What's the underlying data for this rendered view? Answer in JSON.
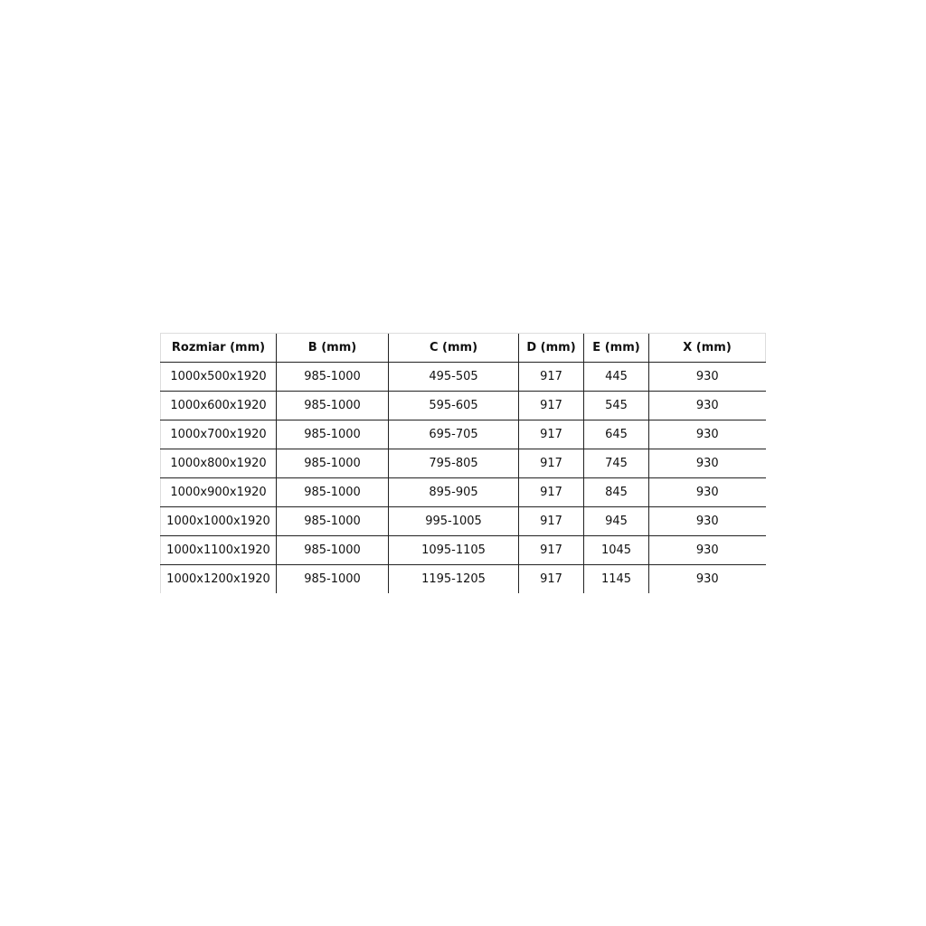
{
  "table": {
    "headers": [
      "Rozmiar (mm)",
      "B (mm)",
      "C (mm)",
      "D (mm)",
      "E (mm)",
      "X (mm)"
    ],
    "rows": [
      [
        "1000x500x1920",
        "985-1000",
        "495-505",
        "917",
        "445",
        "930"
      ],
      [
        "1000x600x1920",
        "985-1000",
        "595-605",
        "917",
        "545",
        "930"
      ],
      [
        "1000x700x1920",
        "985-1000",
        "695-705",
        "917",
        "645",
        "930"
      ],
      [
        "1000x800x1920",
        "985-1000",
        "795-805",
        "917",
        "745",
        "930"
      ],
      [
        "1000x900x1920",
        "985-1000",
        "895-905",
        "917",
        "845",
        "930"
      ],
      [
        "1000x1000x1920",
        "985-1000",
        "995-1005",
        "917",
        "945",
        "930"
      ],
      [
        "1000x1100x1920",
        "985-1000",
        "1095-1105",
        "917",
        "1045",
        "930"
      ],
      [
        "1000x1200x1920",
        "985-1000",
        "1195-1205",
        "917",
        "1145",
        "930"
      ]
    ]
  }
}
